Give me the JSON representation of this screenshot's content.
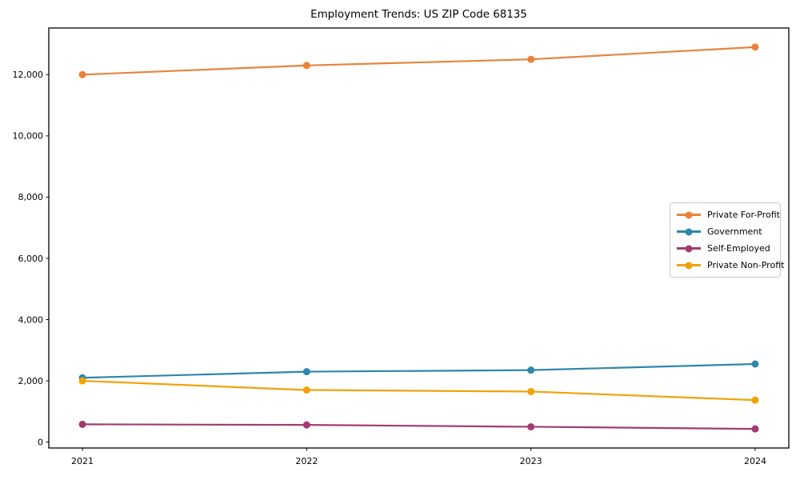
{
  "title": "Employment Trends: US ZIP Code 68135",
  "background_color": "#ffffff",
  "axes_color": "#000000",
  "chart_data": {
    "type": "line",
    "title": "Employment Trends: US ZIP Code 68135",
    "xlabel": "",
    "ylabel": "",
    "x": [
      2021,
      2022,
      2023,
      2024
    ],
    "categories": [
      "2021",
      "2022",
      "2023",
      "2024"
    ],
    "series": [
      {
        "name": "Private For-Profit",
        "color": "#E8833A",
        "values": [
          12000,
          12300,
          12500,
          12900
        ]
      },
      {
        "name": "Government",
        "color": "#2E86AB",
        "values": [
          2100,
          2300,
          2350,
          2550
        ]
      },
      {
        "name": "Self-Employed",
        "color": "#A23B72",
        "values": [
          580,
          560,
          500,
          430
        ]
      },
      {
        "name": "Private Non-Profit",
        "color": "#F1A208",
        "values": [
          2000,
          1700,
          1650,
          1370
        ]
      }
    ],
    "xlim": [
      2020.85,
      2024.15
    ],
    "ylim": [
      -193.5,
      13523.5
    ],
    "yticks": [
      0,
      2000,
      4000,
      6000,
      8000,
      10000,
      12000
    ],
    "ytick_labels": [
      "0",
      "2,000",
      "4,000",
      "6,000",
      "8,000",
      "10,000",
      "12,000"
    ],
    "grid": false,
    "legend_position": "center right",
    "marker": "circle"
  }
}
